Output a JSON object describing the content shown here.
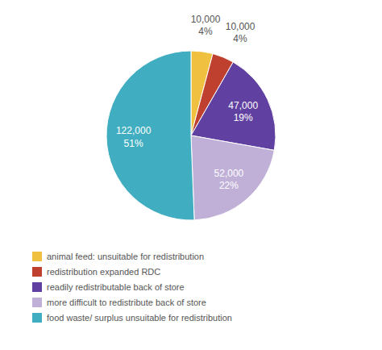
{
  "chart_data": {
    "type": "pie",
    "categories": [
      "animal feed: unsuitable for redistribution",
      "redistribution expanded RDC",
      "readily redistributable back of store",
      "more difficult to redistribute back of store",
      "food waste/ surplus unsuitable for redistribution"
    ],
    "values": [
      10000,
      10000,
      47000,
      52000,
      122000
    ],
    "value_labels": [
      "10,000",
      "10,000",
      "47,000",
      "52,000",
      "122,000"
    ],
    "percents": [
      4,
      4,
      19,
      22,
      51
    ],
    "percent_labels": [
      "4%",
      "4%",
      "19%",
      "22%",
      "51%"
    ],
    "colors": [
      "#f0c040",
      "#c04030",
      "#6040a0",
      "#c0b0d8",
      "#40aec0"
    ],
    "data_labels": true,
    "legend": "bottom"
  }
}
